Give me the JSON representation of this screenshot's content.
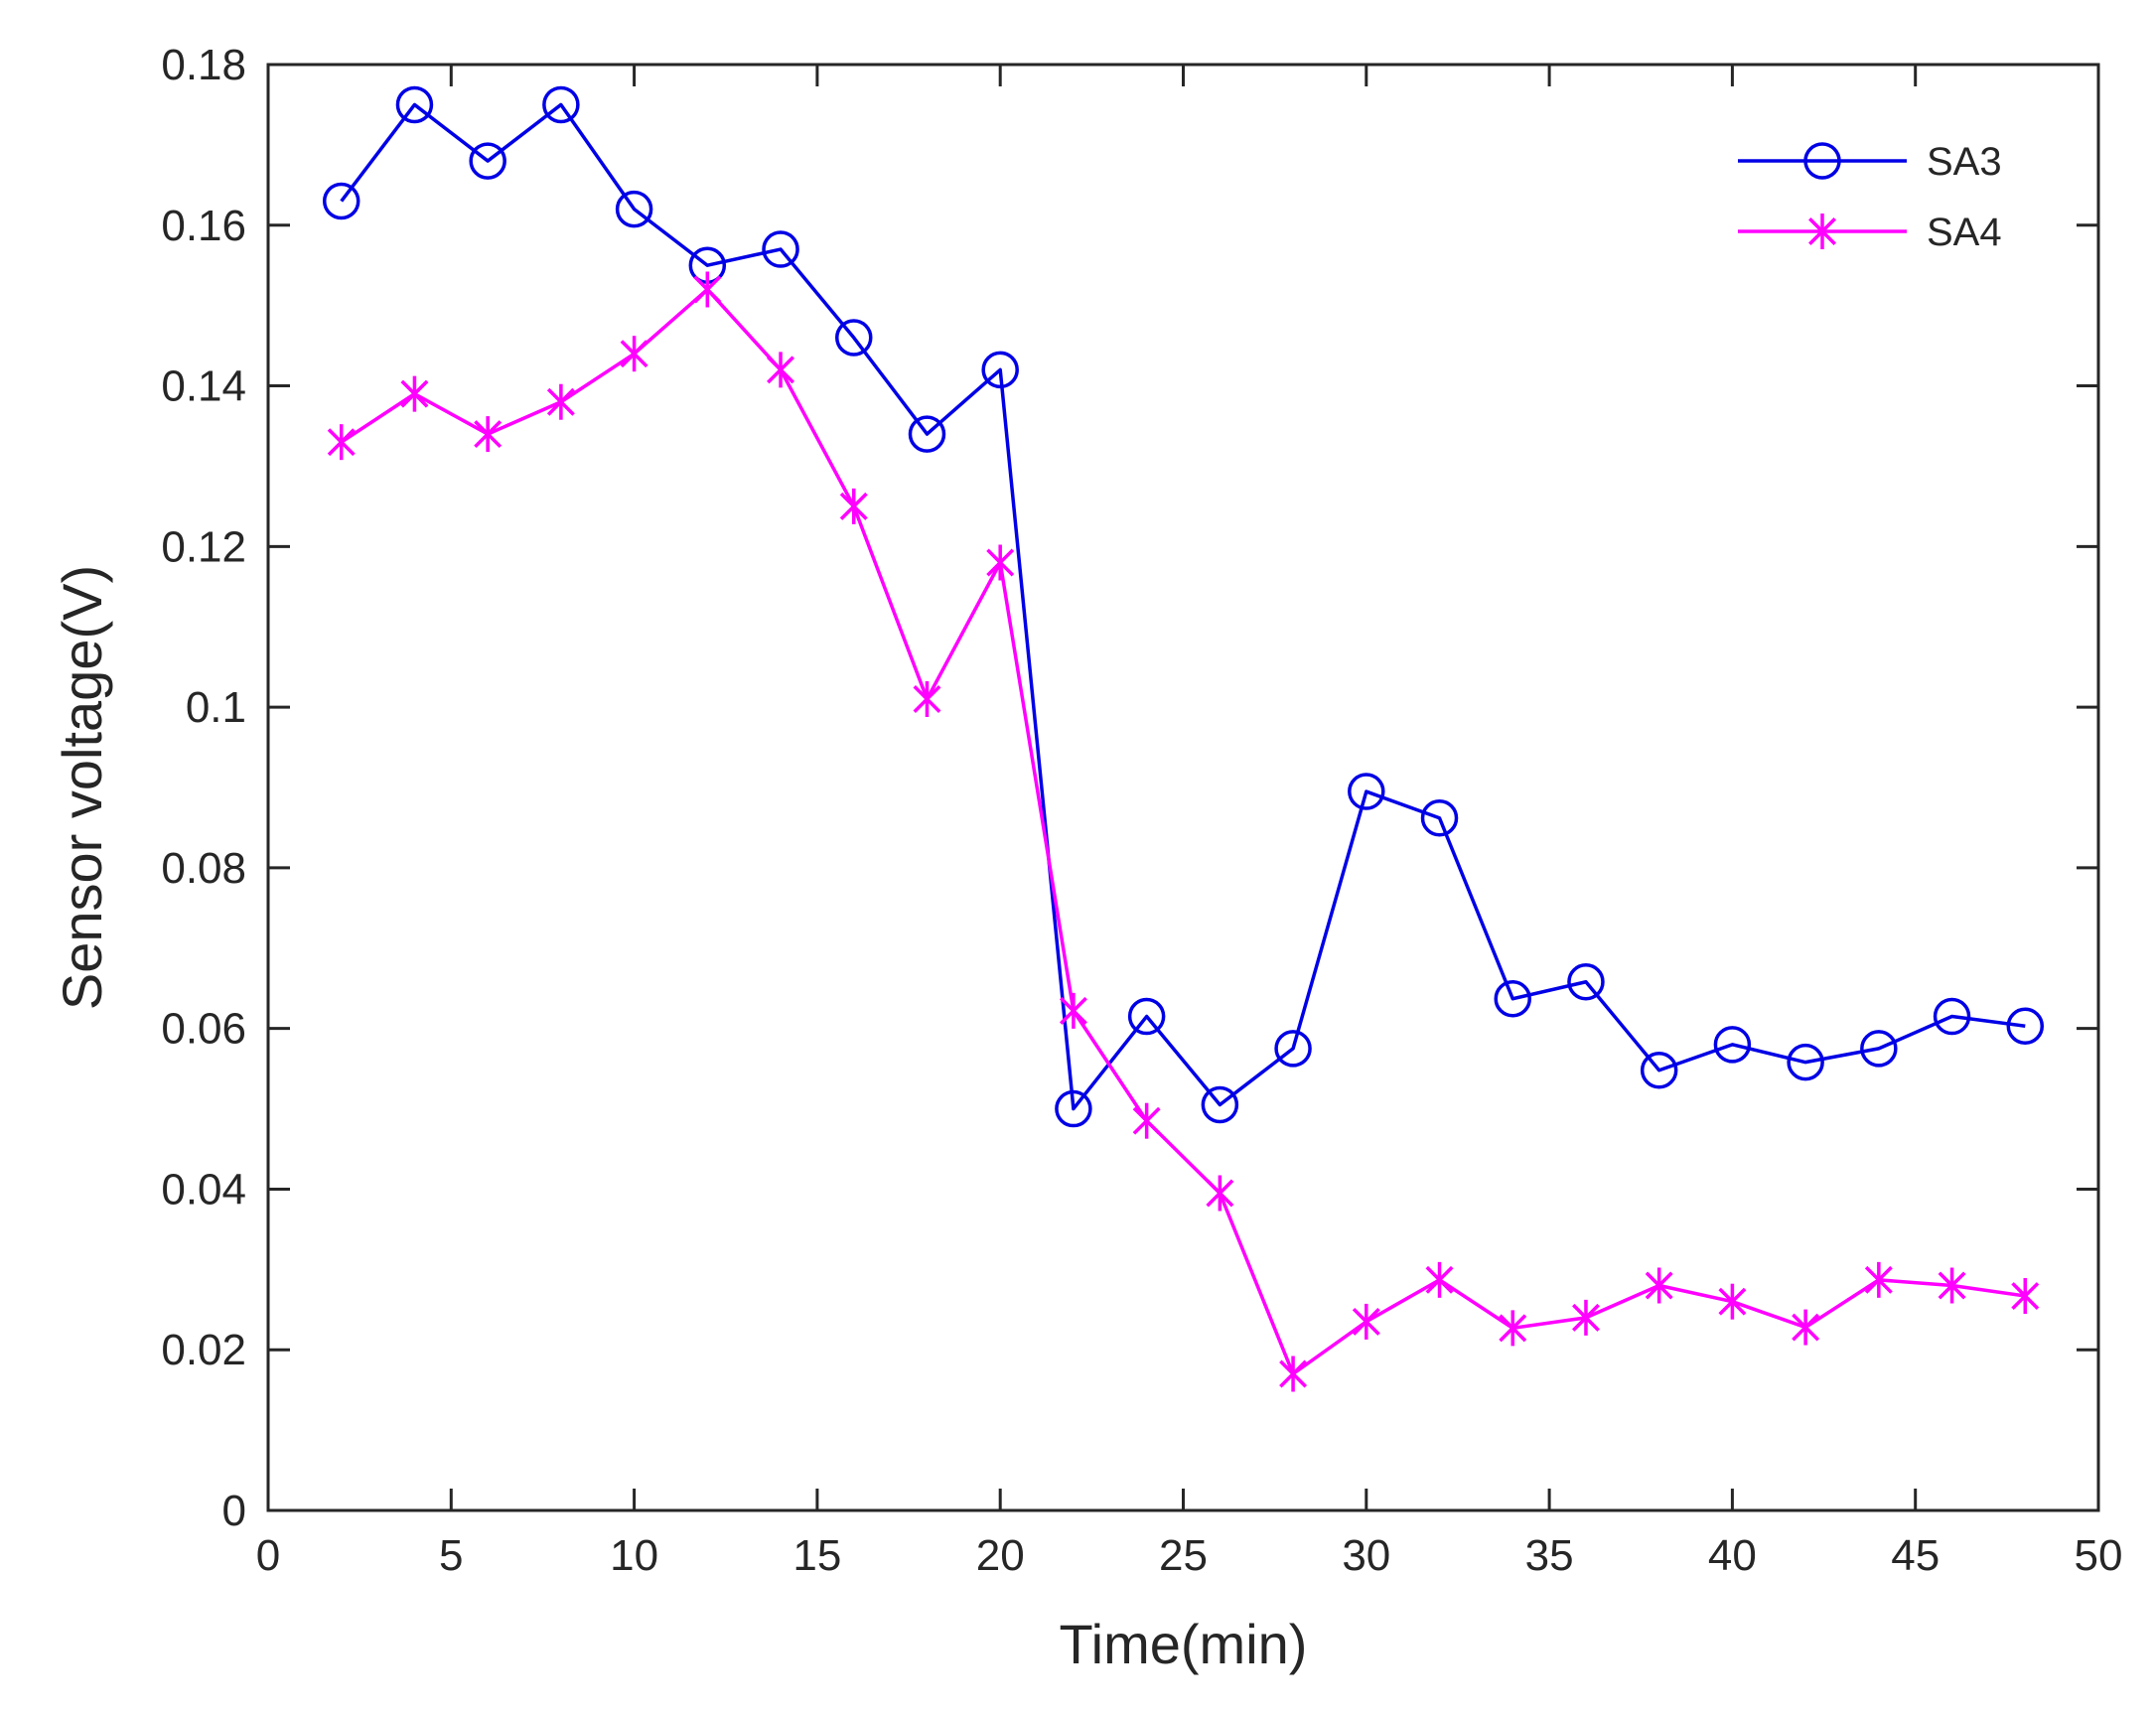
{
  "chart_data": {
    "type": "line",
    "title": "",
    "xlabel": "Time(min)",
    "ylabel": "Sensor voltage(V)",
    "xlim": [
      0,
      50
    ],
    "ylim": [
      0,
      0.18
    ],
    "xticks": [
      0,
      5,
      10,
      15,
      20,
      25,
      30,
      35,
      40,
      45,
      50
    ],
    "xtick_labels": [
      "0",
      "5",
      "10",
      "15",
      "20",
      "25",
      "30",
      "35",
      "40",
      "45",
      "50"
    ],
    "yticks": [
      0,
      0.02,
      0.04,
      0.06,
      0.08,
      0.1,
      0.12,
      0.14,
      0.16,
      0.18
    ],
    "ytick_labels": [
      "0",
      "0.02",
      "0.04",
      "0.06",
      "0.08",
      "0.1",
      "0.12",
      "0.14",
      "0.16",
      "0.18"
    ],
    "grid": false,
    "legend": "top-right",
    "x": [
      2,
      4,
      6,
      8,
      10,
      12,
      14,
      16,
      18,
      20,
      22,
      24,
      26,
      28,
      30,
      32,
      34,
      36,
      38,
      40,
      42,
      44,
      46,
      48
    ],
    "series": [
      {
        "name": "SA3",
        "color": "#0000e6",
        "marker": "circle",
        "values": [
          0.163,
          0.175,
          0.168,
          0.175,
          0.162,
          0.155,
          0.157,
          0.146,
          0.134,
          0.142,
          0.05,
          0.0615,
          0.0505,
          0.0575,
          0.0895,
          0.0862,
          0.0637,
          0.0658,
          0.0548,
          0.058,
          0.0558,
          0.0575,
          0.0615,
          0.0603
        ]
      },
      {
        "name": "SA4",
        "color": "#ff00ff",
        "marker": "asterisk",
        "values": [
          0.133,
          0.139,
          0.134,
          0.138,
          0.144,
          0.152,
          0.142,
          0.125,
          0.101,
          0.118,
          0.0622,
          0.0485,
          0.0395,
          0.017,
          0.0235,
          0.0287,
          0.0227,
          0.024,
          0.028,
          0.026,
          0.0228,
          0.0287,
          0.028,
          0.0267
        ]
      }
    ]
  }
}
